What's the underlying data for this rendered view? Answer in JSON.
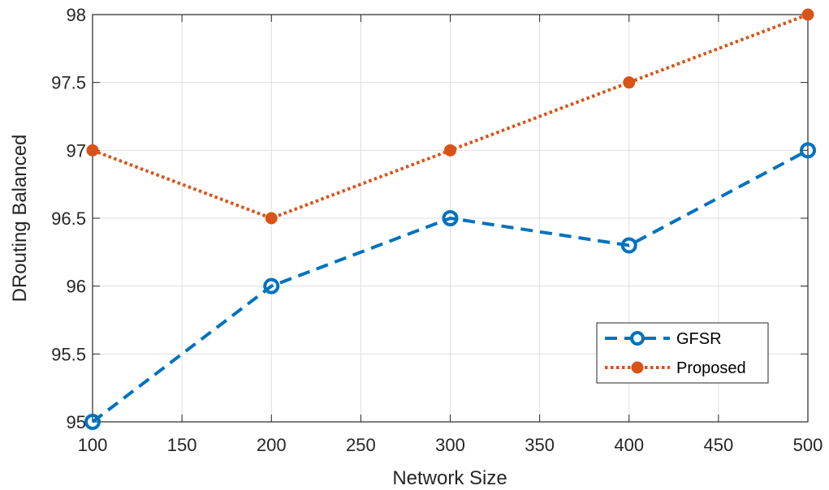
{
  "chart_data": {
    "type": "line",
    "title": "",
    "xlabel": "Network Size",
    "ylabel": "DRouting Balanced",
    "x": [
      100,
      200,
      300,
      400,
      500
    ],
    "xlim": [
      100,
      500
    ],
    "ylim": [
      95,
      98
    ],
    "xticks": [
      "100",
      "150",
      "200",
      "250",
      "300",
      "350",
      "400",
      "450",
      "500"
    ],
    "yticks": [
      "95",
      "95.5",
      "96",
      "96.5",
      "97",
      "97.5",
      "98"
    ],
    "grid": true,
    "legend_position": "lower-right",
    "series": [
      {
        "name": "GFSR",
        "values": [
          95.0,
          96.0,
          96.5,
          96.3,
          97.0
        ],
        "color": "#0072BD",
        "line_style": "dashed",
        "marker": "open-circle"
      },
      {
        "name": "Proposed",
        "values": [
          97.0,
          96.5,
          97.0,
          97.5,
          98.0
        ],
        "color": "#D95319",
        "line_style": "dotted",
        "marker": "filled-circle"
      }
    ]
  }
}
